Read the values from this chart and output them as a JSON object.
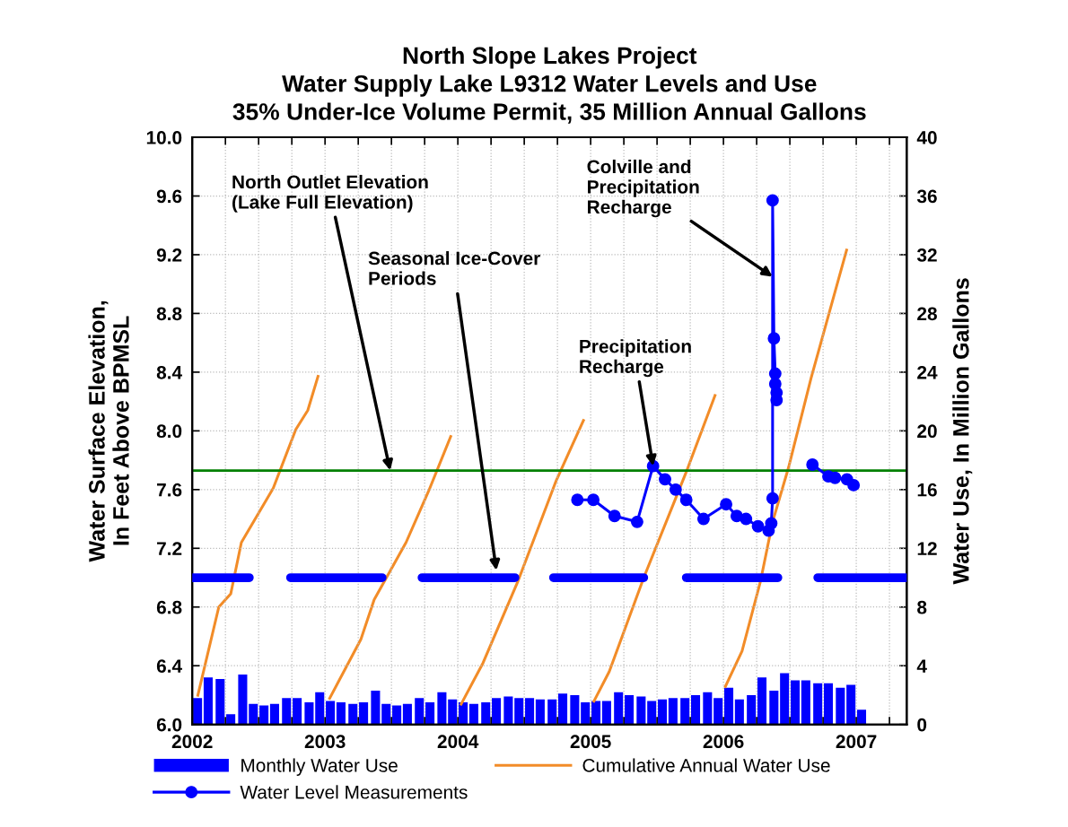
{
  "chart_data": {
    "type": "line",
    "title": "North Slope Lakes Project\nWater Supply Lake L9312 Water Levels and Use\n35% Under-Ice Volume Permit, 35 Million Annual Gallons",
    "ylabel": "Water Surface Elevation,\nIn Feet Above BPMSL",
    "y2label": "Water Use, In Million Gallons",
    "xlim": [
      2002,
      2007.38
    ],
    "xticks": [
      2002,
      {
        "value": 2002.25,
        "label": null
      },
      {
        "value": 2002.5,
        "label": null
      },
      {
        "value": 2002.75,
        "label": null
      },
      2003,
      {
        "value": 2003.25,
        "label": null
      },
      {
        "value": 2003.5,
        "label": null
      },
      {
        "value": 2003.75,
        "label": null
      },
      2004,
      {
        "value": 2004.25,
        "label": null
      },
      {
        "value": 2004.5,
        "label": null
      },
      {
        "value": 2004.75,
        "label": null
      },
      2005,
      {
        "value": 2005.25,
        "label": null
      },
      {
        "value": 2005.5,
        "label": null
      },
      {
        "value": 2005.75,
        "label": null
      },
      2006,
      {
        "value": 2006.25,
        "label": null
      },
      {
        "value": 2006.5,
        "label": null
      },
      {
        "value": 2006.75,
        "label": null
      },
      2007,
      {
        "value": 2007.25,
        "label": null
      }
    ],
    "ylim": [
      6.0,
      10.0
    ],
    "yticks": [
      {
        "value": 6.0,
        "label": "6.0"
      },
      6.4,
      6.8,
      7.2,
      7.6,
      {
        "value": 8.0,
        "label": "8.0"
      },
      8.4,
      8.8,
      9.2,
      9.6,
      {
        "value": 10.0,
        "label": "10.0"
      }
    ],
    "y2lim": [
      0,
      40
    ],
    "y2ticks": [
      0,
      4,
      8,
      12,
      16,
      20,
      24,
      28,
      32,
      36,
      40
    ],
    "grid": true,
    "legend": "bottom",
    "series": [
      {
        "name": "Monthly Water Use",
        "type": "bar",
        "axis": "y2",
        "color": "#0000ff",
        "x": [
          2002.04,
          2002.12,
          2002.21,
          2002.29,
          2002.38,
          2002.46,
          2002.54,
          2002.62,
          2002.71,
          2002.79,
          2002.88,
          2002.96,
          2003.04,
          2003.12,
          2003.21,
          2003.29,
          2003.38,
          2003.46,
          2003.54,
          2003.62,
          2003.71,
          2003.79,
          2003.88,
          2003.96,
          2004.04,
          2004.12,
          2004.21,
          2004.29,
          2004.38,
          2004.46,
          2004.54,
          2004.62,
          2004.71,
          2004.79,
          2004.88,
          2004.96,
          2005.04,
          2005.12,
          2005.21,
          2005.29,
          2005.38,
          2005.46,
          2005.54,
          2005.62,
          2005.71,
          2005.79,
          2005.88,
          2005.96,
          2006.04,
          2006.12,
          2006.21,
          2006.29,
          2006.38,
          2006.46,
          2006.54,
          2006.62,
          2006.71,
          2006.79,
          2006.88,
          2006.96,
          2007.04
        ],
        "values": [
          1.8,
          3.2,
          3.1,
          0.7,
          3.4,
          1.4,
          1.3,
          1.4,
          1.8,
          1.8,
          1.5,
          2.2,
          1.6,
          1.5,
          1.4,
          1.5,
          2.3,
          1.4,
          1.3,
          1.4,
          1.8,
          1.5,
          2.2,
          1.7,
          1.5,
          1.4,
          1.5,
          1.8,
          1.9,
          1.8,
          1.8,
          1.7,
          1.7,
          2.1,
          2.0,
          1.5,
          1.6,
          1.6,
          2.2,
          2.0,
          1.9,
          1.6,
          1.7,
          1.8,
          1.8,
          2.0,
          2.2,
          1.8,
          2.5,
          1.7,
          2.0,
          3.2,
          2.3,
          3.5,
          3.0,
          3.0,
          2.8,
          2.8,
          2.5,
          2.7,
          1.0
        ]
      },
      {
        "name": "Cumulative Annual Water Use",
        "type": "line",
        "axis": "y2",
        "color": "#f28c28",
        "x": [
          2002.04,
          2002.2,
          2002.29,
          2002.37,
          2002.61,
          2002.78,
          2002.87,
          2002.95,
          2003.0,
          2003.03,
          2003.27,
          2003.37,
          2003.61,
          2003.78,
          2003.95,
          2004.0,
          2004.02,
          2004.19,
          2004.45,
          2004.74,
          2004.95,
          2005.0,
          2005.02,
          2005.14,
          2005.4,
          2005.72,
          2005.94,
          2006.0,
          2006.01,
          2006.14,
          2006.28,
          2006.37,
          2006.49,
          2006.66,
          2006.93
        ],
        "values": [
          1.9,
          8.0,
          8.9,
          12.4,
          16.1,
          20.1,
          21.4,
          23.8,
          null,
          1.7,
          5.8,
          8.5,
          12.4,
          15.9,
          19.7,
          null,
          1.3,
          4.2,
          9.7,
          16.6,
          20.8,
          null,
          1.5,
          3.6,
          10.0,
          17.2,
          22.5,
          null,
          2.5,
          5.0,
          9.8,
          13.8,
          17.5,
          23.6,
          32.4
        ]
      },
      {
        "name": "Water Level Measurements",
        "type": "line",
        "axis": "y",
        "color": "#0000ff",
        "marker": "circle",
        "x": [
          2004.9,
          2005.02,
          2005.18,
          2005.35,
          2005.47,
          2005.56,
          2005.64,
          2005.72,
          2005.85,
          2006.02,
          2006.1,
          2006.17,
          2006.26,
          2006.34,
          2006.36,
          2006.37,
          2006.37,
          2006.38,
          2006.39,
          2006.39,
          2006.4,
          2006.4,
          2006.5,
          2006.67,
          2006.79,
          2006.84,
          2006.93,
          2006.98
        ],
        "values": [
          7.53,
          7.53,
          7.42,
          7.38,
          7.76,
          7.67,
          7.6,
          7.53,
          7.4,
          7.5,
          7.42,
          7.4,
          7.35,
          7.32,
          7.37,
          7.54,
          9.57,
          8.63,
          8.39,
          8.32,
          8.26,
          8.21,
          null,
          7.77,
          7.69,
          7.68,
          7.67,
          7.63
        ]
      },
      {
        "type": "line",
        "axis": "y",
        "color": "#0000ff",
        "x": [
          2002.0,
          2002.43,
          2002.6,
          2002.74,
          2003.43,
          2003.6,
          2003.73,
          2004.43,
          2004.6,
          2004.72,
          2005.4,
          2005.6,
          2005.72,
          2006.41,
          2006.6,
          2006.71,
          2007.38
        ],
        "values": [
          7.0,
          7.0,
          null,
          7.0,
          7.0,
          null,
          7.0,
          7.0,
          null,
          7.0,
          7.0,
          null,
          7.0,
          7.0,
          null,
          7.0,
          7.0
        ]
      }
    ],
    "ref_lines": [
      {
        "axis": "y",
        "value": 7.73,
        "color": "#008000"
      }
    ],
    "annotations": [
      {
        "text": "North Outlet Elevation\n(Lake Full Elevation)",
        "x": 2003.49,
        "y": 7.73
      },
      {
        "text": "Seasonal Ice-Cover\nPeriods",
        "x": 2004.29,
        "y": 7.05
      },
      {
        "text": "Precipitation\nRecharge",
        "x": 2005.47,
        "y": 7.76
      },
      {
        "text": "Colville and\nPrecipitation\nRecharge",
        "x": 2006.37,
        "y": 9.05
      }
    ]
  }
}
